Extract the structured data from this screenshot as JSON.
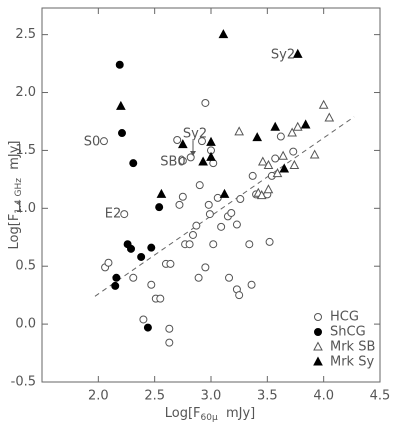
{
  "chart_data": {
    "type": "scatter",
    "x_label": {
      "main": "Log[F",
      "sub": "60μ",
      "tail": "  mJy]"
    },
    "y_label": {
      "main": "Log[F",
      "sub": "1.4 GHz",
      "tail": "  mJy]"
    },
    "xlim": [
      1.5,
      4.5
    ],
    "ylim": [
      -0.5,
      2.73
    ],
    "xticks": [
      {
        "value": 2,
        "label": "2.0"
      },
      {
        "value": 2.5,
        "label": "2.5"
      },
      {
        "value": 3,
        "label": "3.0"
      },
      {
        "value": 3.5,
        "label": "3.5"
      },
      {
        "value": 4,
        "label": "4.0"
      },
      {
        "value": 4.5,
        "label": "4.5"
      }
    ],
    "yticks": [
      {
        "value": -0.5,
        "label": "-0.5"
      },
      {
        "value": 0,
        "label": "0.0"
      },
      {
        "value": 0.5,
        "label": "0.5"
      },
      {
        "value": 1,
        "label": "1.0"
      },
      {
        "value": 1.5,
        "label": "1.5"
      },
      {
        "value": 2,
        "label": "2.0"
      },
      {
        "value": 2.5,
        "label": "2.5"
      }
    ],
    "legend": "lower right",
    "series": [
      {
        "name": "HCG",
        "color": "#555555",
        "marker": "circle",
        "filled": false,
        "x": [
          2.05,
          2.23,
          2.06,
          2.09,
          2.31,
          2.47,
          2.51,
          2.55,
          2.4,
          2.63,
          2.63,
          2.6,
          2.64,
          2.7,
          2.82,
          2.75,
          2.72,
          2.75,
          2.77,
          2.81,
          2.84,
          2.87,
          2.9,
          2.89,
          2.95,
          2.95,
          2.98,
          2.99,
          3.0,
          3.02,
          2.92,
          3.02,
          3.06,
          3.09,
          3.15,
          3.18,
          3.16,
          3.23,
          3.25,
          3.34,
          3.36,
          3.37,
          3.4,
          3.52,
          3.5,
          3.54,
          3.57,
          3.62,
          3.73,
          3.26,
          3.23
        ],
        "values": [
          1.58,
          0.95,
          0.49,
          0.53,
          0.4,
          0.34,
          0.22,
          0.22,
          0.04,
          -0.04,
          -0.16,
          0.52,
          0.52,
          1.59,
          1.44,
          1.41,
          1.03,
          1.1,
          0.69,
          0.69,
          0.77,
          0.85,
          1.2,
          0.4,
          1.91,
          0.49,
          1.03,
          0.95,
          1.5,
          0.69,
          1.58,
          1.39,
          1.09,
          0.84,
          0.93,
          0.96,
          0.4,
          0.3,
          0.25,
          0.69,
          0.34,
          1.28,
          1.12,
          0.71,
          1.12,
          1.28,
          1.43,
          1.62,
          1.49,
          1.08,
          0.86
        ]
      },
      {
        "name": "ShCG",
        "color": "#000000",
        "marker": "circle",
        "filled": true,
        "x": [
          2.19,
          2.21,
          2.31,
          2.16,
          2.15,
          2.26,
          2.29,
          2.38,
          2.47,
          2.54,
          2.44
        ],
        "values": [
          2.24,
          1.65,
          1.39,
          0.4,
          0.33,
          0.69,
          0.65,
          0.58,
          0.66,
          1.01,
          -0.03
        ]
      },
      {
        "name": "Mrk SB",
        "color": "#555555",
        "marker": "triangle",
        "filled": false,
        "x": [
          3.25,
          3.46,
          3.51,
          3.42,
          3.45,
          3.51,
          3.59,
          3.64,
          3.72,
          3.74,
          4.0,
          4.05,
          3.92,
          3.77
        ],
        "values": [
          1.66,
          1.4,
          1.37,
          1.13,
          1.11,
          1.16,
          1.3,
          1.45,
          1.65,
          1.37,
          1.89,
          1.78,
          1.46,
          1.7
        ]
      },
      {
        "name": "Mrk Sy",
        "color": "#000000",
        "marker": "triangle",
        "filled": true,
        "x": [
          2.2,
          2.56,
          2.75,
          2.93,
          3.0,
          3.0,
          3.11,
          3.12,
          3.41,
          3.57,
          3.65,
          3.77,
          3.84
        ],
        "values": [
          1.88,
          1.12,
          1.55,
          1.4,
          1.44,
          1.57,
          2.5,
          1.12,
          1.61,
          1.7,
          1.34,
          2.33,
          1.72
        ]
      }
    ],
    "fit_line": {
      "x": [
        1.97,
        4.27
      ],
      "y": [
        0.24,
        1.79
      ]
    },
    "annotations": [
      "S0",
      "E2",
      "Sy2",
      "Sy2",
      "SB0"
    ]
  }
}
